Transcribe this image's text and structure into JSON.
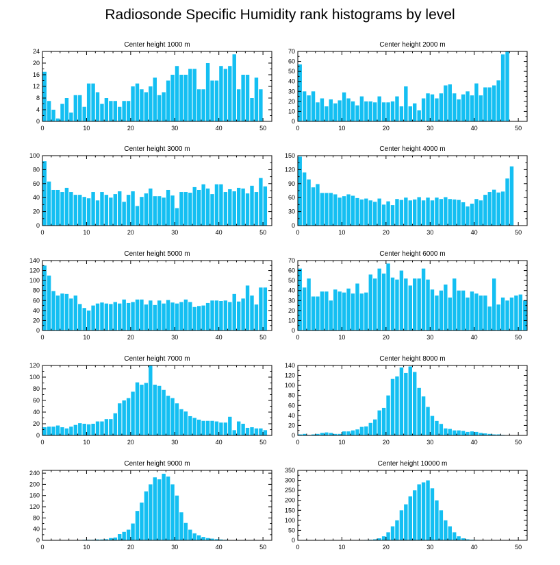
{
  "title": "Radiosonde Specific Humidity rank histograms by level",
  "chart_data": [
    {
      "type": "bar",
      "title": "Center height 1000 m",
      "xlim": [
        0,
        52
      ],
      "ylim": [
        0,
        24
      ],
      "xticks": [
        0,
        10,
        20,
        30,
        40,
        50
      ],
      "yticks": [
        0,
        4,
        8,
        12,
        16,
        20,
        24
      ],
      "values": [
        17,
        7,
        4,
        1,
        6,
        8,
        3,
        9,
        9,
        5,
        13,
        13,
        10,
        6,
        8,
        7,
        7,
        5,
        7,
        7,
        12,
        13,
        11,
        10,
        12,
        15,
        9,
        10,
        14,
        16,
        19,
        16,
        16,
        18,
        18,
        11,
        11,
        20,
        14,
        14,
        19,
        18,
        19,
        23,
        11,
        16,
        16,
        8,
        15,
        11
      ]
    },
    {
      "type": "bar",
      "title": "Center height 2000 m",
      "xlim": [
        0,
        52
      ],
      "ylim": [
        0,
        70
      ],
      "xticks": [
        0,
        10,
        20,
        30,
        40,
        50
      ],
      "yticks": [
        0,
        10,
        20,
        30,
        40,
        50,
        60,
        70
      ],
      "values": [
        57,
        30,
        26,
        30,
        19,
        23,
        15,
        22,
        18,
        21,
        29,
        23,
        20,
        16,
        25,
        20,
        20,
        19,
        25,
        19,
        19,
        20,
        25,
        15,
        35,
        15,
        18,
        11,
        23,
        28,
        27,
        23,
        28,
        36,
        37,
        28,
        22,
        27,
        30,
        26,
        38,
        26,
        34,
        34,
        36,
        41,
        67,
        70
      ]
    },
    {
      "type": "bar",
      "title": "Center height 3000 m",
      "xlim": [
        0,
        52
      ],
      "ylim": [
        0,
        100
      ],
      "xticks": [
        0,
        10,
        20,
        30,
        40,
        50
      ],
      "yticks": [
        0,
        20,
        40,
        60,
        80,
        100
      ],
      "values": [
        92,
        63,
        51,
        51,
        48,
        54,
        48,
        44,
        44,
        41,
        39,
        48,
        36,
        48,
        44,
        40,
        45,
        49,
        34,
        44,
        49,
        28,
        41,
        46,
        53,
        42,
        42,
        40,
        51,
        43,
        25,
        48,
        48,
        47,
        55,
        51,
        59,
        53,
        45,
        59,
        59,
        48,
        52,
        49,
        54,
        53,
        46,
        57,
        48,
        68,
        56
      ]
    },
    {
      "type": "bar",
      "title": "Center height 4000 m",
      "xlim": [
        0,
        52
      ],
      "ylim": [
        0,
        150
      ],
      "xticks": [
        0,
        10,
        20,
        30,
        40,
        50
      ],
      "yticks": [
        0,
        30,
        60,
        90,
        120,
        150
      ],
      "values": [
        148,
        114,
        99,
        82,
        89,
        70,
        70,
        70,
        67,
        60,
        63,
        67,
        64,
        59,
        56,
        58,
        54,
        51,
        58,
        45,
        52,
        44,
        57,
        55,
        60,
        54,
        56,
        61,
        54,
        60,
        54,
        60,
        57,
        61,
        57,
        56,
        55,
        50,
        41,
        47,
        57,
        54,
        66,
        72,
        77,
        71,
        73,
        101,
        127
      ]
    },
    {
      "type": "bar",
      "title": "Center height 5000 m",
      "xlim": [
        0,
        52
      ],
      "ylim": [
        0,
        140
      ],
      "xticks": [
        0,
        10,
        20,
        30,
        40,
        50
      ],
      "yticks": [
        0,
        20,
        40,
        60,
        80,
        100,
        120,
        140
      ],
      "values": [
        130,
        110,
        79,
        70,
        74,
        73,
        64,
        70,
        53,
        45,
        40,
        50,
        54,
        56,
        54,
        53,
        57,
        54,
        62,
        55,
        57,
        62,
        62,
        52,
        60,
        51,
        60,
        54,
        61,
        56,
        54,
        57,
        62,
        57,
        47,
        49,
        50,
        55,
        60,
        60,
        59,
        60,
        57,
        73,
        58,
        64,
        90,
        70,
        52,
        86,
        86
      ]
    },
    {
      "type": "bar",
      "title": "Center height 6000 m",
      "xlim": [
        0,
        52
      ],
      "ylim": [
        0,
        70
      ],
      "xticks": [
        0,
        10,
        20,
        30,
        40,
        50
      ],
      "yticks": [
        0,
        10,
        20,
        30,
        40,
        50,
        60,
        70
      ],
      "values": [
        62,
        43,
        52,
        34,
        34,
        39,
        39,
        30,
        41,
        39,
        38,
        42,
        37,
        47,
        37,
        38,
        56,
        52,
        62,
        57,
        67,
        53,
        51,
        60,
        52,
        45,
        52,
        52,
        62,
        51,
        41,
        35,
        40,
        46,
        33,
        52,
        40,
        40,
        33,
        39,
        37,
        35,
        35,
        24,
        52,
        26,
        33,
        30,
        33,
        35,
        36,
        30
      ]
    },
    {
      "type": "bar",
      "title": "Center height 7000 m",
      "xlim": [
        0,
        52
      ],
      "ylim": [
        0,
        120
      ],
      "xticks": [
        0,
        10,
        20,
        30,
        40,
        50
      ],
      "yticks": [
        0,
        20,
        40,
        60,
        80,
        100,
        120
      ],
      "values": [
        14,
        15,
        15,
        17,
        14,
        12,
        15,
        18,
        21,
        20,
        19,
        20,
        24,
        24,
        28,
        28,
        38,
        55,
        60,
        64,
        75,
        91,
        87,
        90,
        120,
        87,
        85,
        78,
        68,
        64,
        55,
        45,
        41,
        33,
        30,
        27,
        25,
        25,
        25,
        24,
        22,
        22,
        32,
        9,
        24,
        20,
        13,
        14,
        12,
        12,
        9
      ]
    },
    {
      "type": "bar",
      "title": "Center height 8000 m",
      "xlim": [
        0,
        52
      ],
      "ylim": [
        0,
        140
      ],
      "xticks": [
        0,
        10,
        20,
        30,
        40,
        50
      ],
      "yticks": [
        0,
        20,
        40,
        60,
        80,
        100,
        120,
        140
      ],
      "values": [
        2,
        3,
        1,
        2,
        3,
        5,
        6,
        5,
        3,
        3,
        8,
        8,
        10,
        12,
        17,
        18,
        25,
        32,
        50,
        55,
        80,
        113,
        118,
        136,
        125,
        138,
        127,
        95,
        78,
        57,
        39,
        29,
        23,
        14,
        13,
        10,
        10,
        9,
        7,
        8,
        7,
        5,
        4,
        3,
        2,
        2,
        1
      ]
    },
    {
      "type": "bar",
      "title": "Center height 9000 m",
      "xlim": [
        0,
        52
      ],
      "ylim": [
        0,
        250
      ],
      "xticks": [
        0,
        10,
        20,
        30,
        40,
        50
      ],
      "yticks": [
        0,
        40,
        80,
        120,
        160,
        200,
        240
      ],
      "values": [
        1,
        1,
        1,
        1,
        1,
        1,
        1,
        1,
        1,
        2,
        2,
        2,
        3,
        3,
        4,
        8,
        10,
        22,
        30,
        38,
        60,
        105,
        135,
        175,
        200,
        225,
        218,
        238,
        228,
        200,
        160,
        100,
        62,
        38,
        25,
        18,
        12,
        8,
        6,
        4,
        3,
        2,
        1,
        1,
        1,
        1,
        1,
        1,
        1,
        1,
        1,
        1
      ]
    },
    {
      "type": "bar",
      "title": "Center height 10000 m",
      "xlim": [
        0,
        52
      ],
      "ylim": [
        0,
        350
      ],
      "xticks": [
        0,
        10,
        20,
        30,
        40,
        50
      ],
      "yticks": [
        0,
        50,
        100,
        150,
        200,
        250,
        300,
        350
      ],
      "values": [
        1,
        1,
        1,
        1,
        1,
        1,
        1,
        1,
        1,
        1,
        1,
        1,
        1,
        1,
        1,
        2,
        3,
        5,
        10,
        20,
        40,
        70,
        100,
        150,
        180,
        220,
        250,
        280,
        290,
        300,
        260,
        200,
        150,
        100,
        70,
        40,
        20,
        10,
        5,
        3,
        2,
        1,
        1,
        1,
        1,
        1,
        1,
        1,
        1,
        1,
        1,
        1
      ]
    }
  ]
}
